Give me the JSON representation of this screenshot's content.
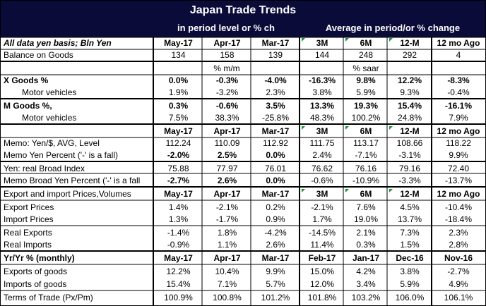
{
  "header": {
    "title": "Japan Trade Trends",
    "subtitle_left": "in period level or % ch",
    "subtitle_right": "Average in period/or % change"
  },
  "rows": [
    {
      "label": "All data yen basis; Bln Yen",
      "style": "ital b",
      "indent": false,
      "cells": [
        "May-17",
        "Apr-17",
        "Mar-17",
        "3M",
        "6M",
        "12-M",
        "12 mo Ago"
      ],
      "cells_bold": true,
      "cells_align": "c"
    },
    {
      "label": "Balance on Goods",
      "indent": false,
      "cells": [
        "134",
        "158",
        "139",
        "144",
        "248",
        "292",
        "4"
      ],
      "cells_align": "c"
    },
    {
      "label": "",
      "indent": false,
      "span": [
        "% m/m",
        "% saar"
      ]
    },
    {
      "label": "X Goods %",
      "style": "b",
      "indent": false,
      "cells": [
        "0.0%",
        "-0.3%",
        "-4.0%",
        "-16.3%",
        "9.8%",
        "12.2%",
        "-8.3%"
      ],
      "cells_bold": true,
      "cells_align": "c"
    },
    {
      "label": "Motor vehicles",
      "indent": true,
      "cells": [
        "1.9%",
        "-3.2%",
        "2.3%",
        "3.8%",
        "5.9%",
        "9.3%",
        "-0.4%"
      ],
      "cells_align": "c"
    },
    {
      "label": "M Goods %,",
      "style": "b",
      "indent": false,
      "cells": [
        "0.3%",
        "-0.6%",
        "3.5%",
        "13.3%",
        "19.3%",
        "15.4%",
        "-16.1%"
      ],
      "cells_bold": true,
      "cells_align": "c"
    },
    {
      "label": "Motor vehicles",
      "indent": true,
      "cells": [
        "7.5%",
        "38.3%",
        "-25.8%",
        "48.3%",
        "100.2%",
        "24.8%",
        "7.9%"
      ],
      "cells_align": "c"
    },
    {
      "label": "",
      "indent": false,
      "cells": [
        "May-17",
        "Apr-17",
        "Mar-17",
        "3M",
        "6M",
        "12-M",
        "12 mo Ago"
      ],
      "cells_bold": true,
      "cells_align": "c"
    },
    {
      "label": "Memo: Yen/$, AVG, Level",
      "indent": false,
      "cells": [
        "112.24",
        "110.09",
        "112.92",
        "111.75",
        "113.17",
        "108.66",
        "118.22"
      ],
      "cells_align": "c"
    },
    {
      "label": "Memo Yen Percent ('-' is a fall)",
      "indent": false,
      "cells": [
        "-2.0%",
        "2.5%",
        "0.0%",
        "2.4%",
        "-7.1%",
        "-3.1%",
        "9.9%"
      ],
      "cells_bold_first3": true,
      "cells_align": "c"
    },
    {
      "label": "Yen: real Broad Index",
      "indent": false,
      "cells": [
        "75.88",
        "77.97",
        "76.01",
        "76.62",
        "76.16",
        "79.16",
        "72.40"
      ],
      "cells_align": "c"
    },
    {
      "label": "Memo Broad Yen Percent ('-' is a fall",
      "indent": false,
      "cells": [
        "-2.7%",
        "2.6%",
        "0.0%",
        "-0.6%",
        "-10.9%",
        "-3.3%",
        "-13.7%"
      ],
      "cells_bold_first3": true,
      "cells_align": "c"
    },
    {
      "label": "Export and import Prices,Volumes",
      "indent": false,
      "cells": [
        "May-17",
        "Apr-17",
        "Mar-17",
        "3M",
        "6M",
        "12-M",
        "12 mo Ago"
      ],
      "cells_bold": true,
      "cells_align": "c"
    },
    {
      "label": "Export Prices",
      "indent": false,
      "cells": [
        "1.4%",
        "-2.1%",
        "0.2%",
        "-2.1%",
        "7.6%",
        "4.5%",
        "-10.4%"
      ],
      "cells_align": "c"
    },
    {
      "label": "Import Prices",
      "indent": false,
      "cells": [
        "1.3%",
        "-1.7%",
        "0.9%",
        "1.7%",
        "19.0%",
        "13.7%",
        "-18.4%"
      ],
      "cells_align": "c"
    },
    {
      "label": "Real Exports",
      "indent": false,
      "cells": [
        "-1.4%",
        "1.8%",
        "-4.2%",
        "-14.5%",
        "2.1%",
        "7.3%",
        "2.3%"
      ],
      "cells_align": "c"
    },
    {
      "label": "Real Imports",
      "indent": false,
      "cells": [
        "-0.9%",
        "1.1%",
        "2.6%",
        "11.4%",
        "0.3%",
        "1.5%",
        "2.8%"
      ],
      "cells_align": "c"
    },
    {
      "label": "Yr/Yr % (monthly)",
      "style": "b",
      "indent": false,
      "cells": [
        "May-17",
        "Apr-17",
        "Mar-17",
        "Feb-17",
        "Jan-17",
        "Dec-16",
        "Nov-16"
      ],
      "cells_bold": true,
      "cells_align": "c"
    },
    {
      "label": "Exports of goods",
      "indent": false,
      "cells": [
        "12.2%",
        "10.4%",
        "9.9%",
        "15.0%",
        "4.2%",
        "3.8%",
        "-2.7%"
      ],
      "cells_align": "c"
    },
    {
      "label": "Imports of goods",
      "indent": false,
      "cells": [
        "15.4%",
        "7.1%",
        "5.7%",
        "12.0%",
        "3.4%",
        "5.9%",
        "4.9%"
      ],
      "cells_align": "c"
    },
    {
      "label": "Terms of Trade (Px/Pm)",
      "indent": false,
      "cells": [
        "100.9%",
        "100.8%",
        "101.2%",
        "101.8%",
        "103.2%",
        "106.0%",
        "106.1%"
      ],
      "cells_align": "c"
    }
  ],
  "colors": {
    "title_band": "#0b0b3a",
    "title_text": "#ffffff",
    "grid_line": "#000000",
    "comment_marker": "#1a8f3a"
  }
}
